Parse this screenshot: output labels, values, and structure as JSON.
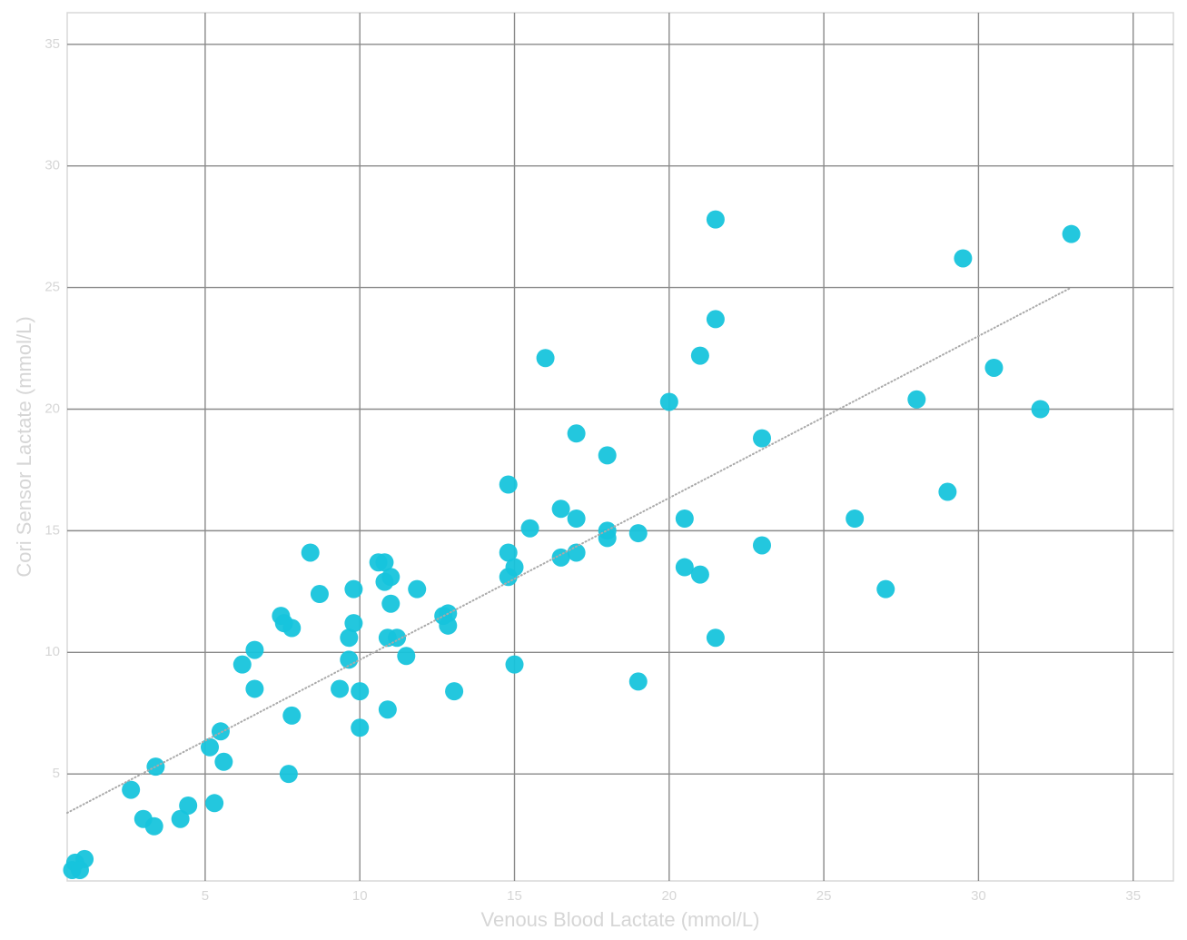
{
  "chart_data": {
    "type": "scatter",
    "x_label": "Venous Blood Lactate (mmol/L)",
    "y_label": "Cori Sensor Lactate (mmol/L)",
    "xlim": [
      0.54,
      36.3
    ],
    "ylim": [
      0.6,
      36.3
    ],
    "xticks": [
      5,
      10,
      15,
      20,
      25,
      30,
      35
    ],
    "yticks": [
      5,
      10,
      15,
      20,
      25,
      30,
      35
    ],
    "grid": true,
    "color": "#17c4dc",
    "x": [
      21.5,
      33.0,
      29.5,
      21.5,
      16.0,
      21.0,
      30.5,
      20.0,
      28.0,
      32.0,
      17.0,
      23.0,
      18.0,
      14.8,
      29.0,
      16.5,
      17.0,
      20.5,
      26.0,
      15.5,
      18.0,
      18.0,
      19.0,
      23.0,
      8.4,
      14.8,
      17.0,
      16.5,
      10.6,
      10.8,
      15.0,
      20.5,
      21.0,
      11.0,
      10.8,
      14.8,
      9.8,
      11.85,
      27.0,
      8.7,
      11.0,
      7.45,
      12.7,
      12.85,
      7.55,
      12.85,
      7.8,
      9.8,
      9.65,
      10.9,
      11.2,
      21.5,
      6.6,
      11.5,
      9.65,
      6.2,
      15.0,
      19.0,
      9.35,
      6.6,
      10.0,
      13.05,
      10.9,
      7.8,
      10.0,
      5.5,
      5.15,
      5.6,
      3.4,
      7.7,
      2.6,
      4.45,
      5.3,
      3.0,
      4.2,
      3.35,
      1.1,
      0.8,
      0.7,
      0.95
    ],
    "y": [
      27.8,
      27.2,
      26.2,
      23.7,
      22.1,
      22.2,
      21.7,
      20.3,
      20.4,
      20.0,
      19.0,
      18.8,
      18.1,
      16.9,
      16.6,
      15.9,
      15.5,
      15.5,
      15.5,
      15.1,
      15.0,
      14.7,
      14.9,
      14.4,
      14.1,
      14.1,
      14.1,
      13.9,
      13.7,
      13.7,
      13.5,
      13.5,
      13.2,
      13.1,
      12.9,
      13.1,
      12.6,
      12.6,
      12.6,
      12.4,
      12.0,
      11.5,
      11.5,
      11.6,
      11.2,
      11.1,
      11.0,
      11.2,
      10.6,
      10.6,
      10.6,
      10.6,
      10.1,
      9.85,
      9.7,
      9.5,
      9.5,
      8.8,
      8.5,
      8.5,
      8.4,
      8.4,
      7.65,
      7.4,
      6.9,
      6.75,
      6.1,
      5.5,
      5.3,
      5.0,
      4.35,
      3.7,
      3.8,
      3.15,
      3.15,
      2.85,
      1.5,
      1.35,
      1.05,
      1.05
    ],
    "trendline": {
      "x": [
        0.54,
        33.0
      ],
      "y": [
        3.4,
        25.0
      ],
      "color": "#aaaaaa"
    }
  }
}
